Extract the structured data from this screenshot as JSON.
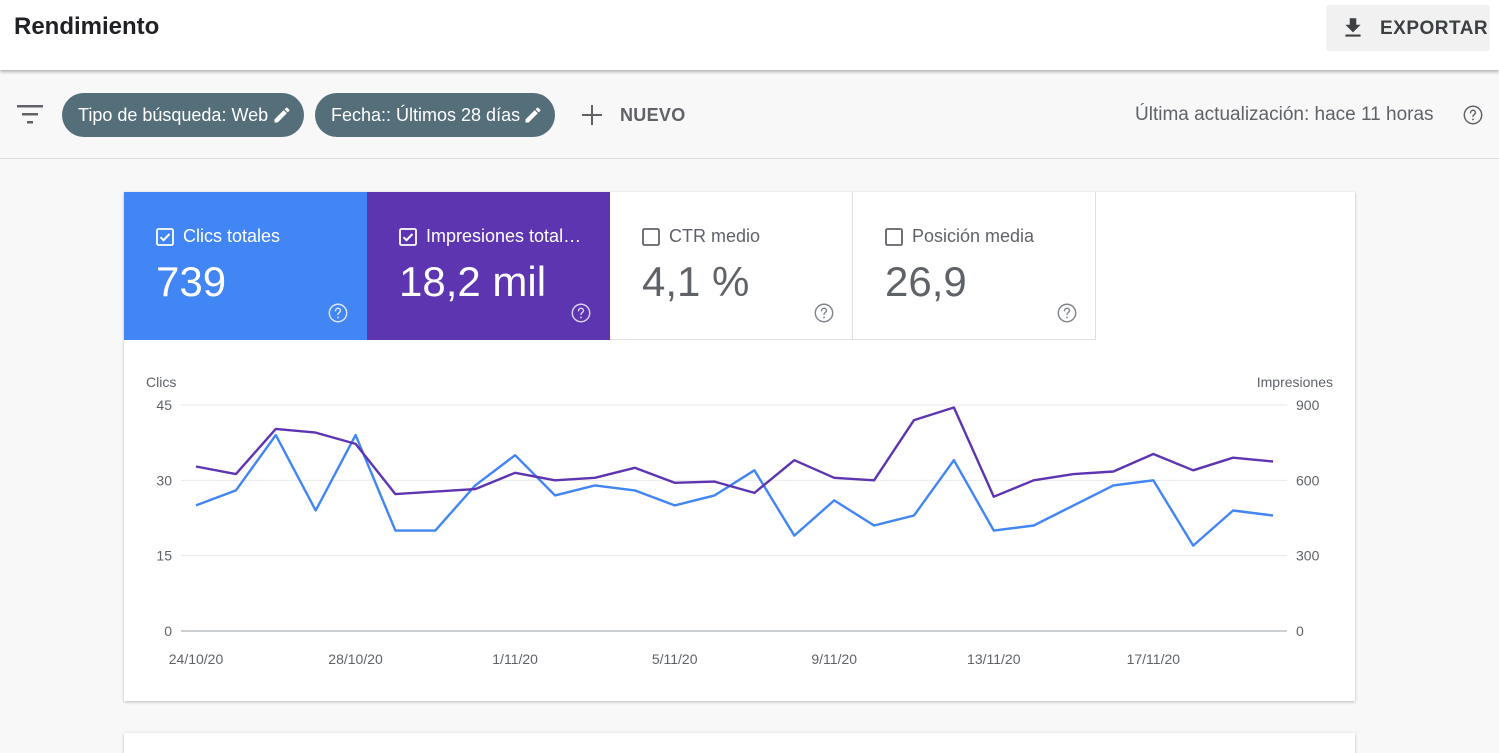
{
  "header": {
    "title": "Rendimiento",
    "export_label": "EXPORTAR"
  },
  "filters": {
    "chips": [
      {
        "label": "Tipo de búsqueda: Web"
      },
      {
        "label": "Fecha:: Últimos 28 días"
      }
    ],
    "new_label": "NUEVO",
    "last_update": "Última actualización: hace 11 horas"
  },
  "metrics": [
    {
      "label": "Clics totales",
      "value": "739",
      "checked": true,
      "color": "#4285f4"
    },
    {
      "label": "Impresiones total…",
      "value": "18,2 mil",
      "checked": true,
      "color": "#5e35b1"
    },
    {
      "label": "CTR medio",
      "value": "4,1 %",
      "checked": false
    },
    {
      "label": "Posición media",
      "value": "26,9",
      "checked": false
    }
  ],
  "chart_data": {
    "type": "line",
    "left_axis_label": "Clics",
    "right_axis_label": "Impresiones",
    "left_ticks": [
      "0",
      "15",
      "30",
      "45"
    ],
    "right_ticks": [
      "0",
      "300",
      "600",
      "900"
    ],
    "left_range": [
      0,
      45
    ],
    "right_range": [
      0,
      900
    ],
    "x_tick_labels": [
      "24/10/20",
      "28/10/20",
      "1/11/20",
      "5/11/20",
      "9/11/20",
      "13/11/20",
      "17/11/20"
    ],
    "x": [
      "24/10/20",
      "25/10/20",
      "26/10/20",
      "27/10/20",
      "28/10/20",
      "29/10/20",
      "30/10/20",
      "31/10/20",
      "1/11/20",
      "2/11/20",
      "3/11/20",
      "4/11/20",
      "5/11/20",
      "6/11/20",
      "7/11/20",
      "8/11/20",
      "9/11/20",
      "10/11/20",
      "11/11/20",
      "12/11/20",
      "13/11/20",
      "14/11/20",
      "15/11/20",
      "16/11/20",
      "17/11/20",
      "18/11/20",
      "19/11/20",
      "20/11/20"
    ],
    "series": [
      {
        "name": "Clics",
        "axis": "left",
        "color": "#4285f4",
        "values": [
          25,
          28,
          39,
          24,
          39,
          20,
          20,
          29,
          35,
          27,
          29,
          28,
          25,
          27,
          32,
          19,
          26,
          21,
          23,
          34,
          20,
          21,
          25,
          29,
          30,
          17,
          24,
          23
        ]
      },
      {
        "name": "Impresiones",
        "axis": "right",
        "color": "#5e35b1",
        "values": [
          655,
          625,
          805,
          790,
          745,
          545,
          555,
          565,
          630,
          600,
          610,
          650,
          590,
          595,
          550,
          680,
          610,
          600,
          840,
          890,
          535,
          600,
          625,
          635,
          705,
          640,
          690,
          675
        ]
      }
    ],
    "grid": true
  }
}
